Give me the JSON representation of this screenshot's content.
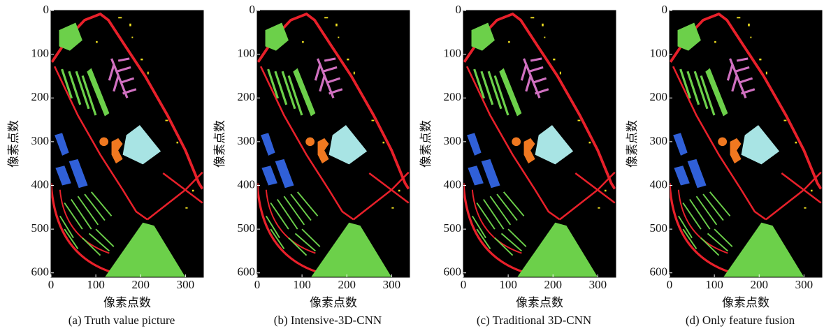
{
  "chart_data": [
    {
      "type": "image",
      "title": "(a) Truth value picture",
      "xlabel": "像素点数",
      "ylabel": "像素点数",
      "xlim": [
        0,
        340
      ],
      "ylim": [
        610,
        0
      ],
      "xticks": [
        0,
        100,
        200,
        300
      ],
      "yticks": [
        0,
        100,
        200,
        300,
        400,
        500,
        600
      ]
    },
    {
      "type": "image",
      "title": "(b) Intensive-3D-CNN",
      "xlabel": "像素点数",
      "ylabel": "像素点数",
      "xlim": [
        0,
        340
      ],
      "ylim": [
        610,
        0
      ],
      "xticks": [
        0,
        100,
        200,
        300
      ],
      "yticks": [
        0,
        100,
        200,
        300,
        400,
        500,
        600
      ]
    },
    {
      "type": "image",
      "title": "(c) Traditional 3D-CNN",
      "xlabel": "像素点数",
      "ylabel": "像素点数",
      "xlim": [
        0,
        340
      ],
      "ylim": [
        610,
        0
      ],
      "xticks": [
        0,
        100,
        200,
        300
      ],
      "yticks": [
        0,
        100,
        200,
        300,
        400,
        500,
        600
      ]
    },
    {
      "type": "image",
      "title": "(d) Only feature fusion",
      "xlabel": "像素点数",
      "ylabel": "像素点数",
      "xlim": [
        0,
        340
      ],
      "ylim": [
        610,
        0
      ],
      "xticks": [
        0,
        100,
        200,
        300
      ],
      "yticks": [
        0,
        100,
        200,
        300,
        400,
        500,
        600
      ]
    }
  ]
}
